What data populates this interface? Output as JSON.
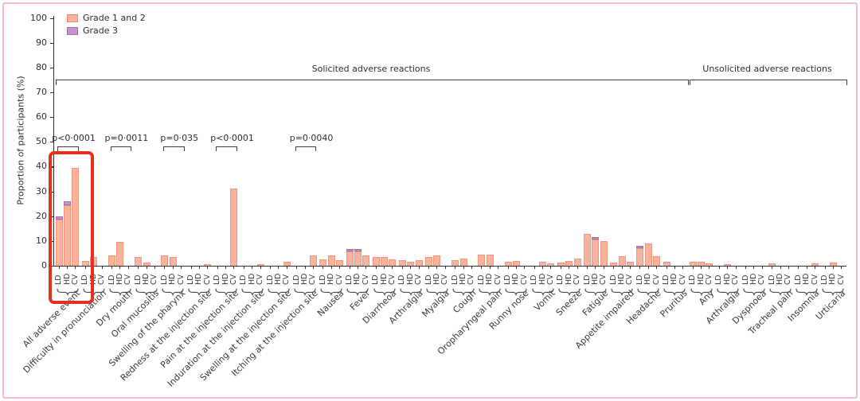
{
  "figure": {
    "y_axis": {
      "title": "Proportion of participants (%)",
      "min": 0,
      "max": 100,
      "step": 10
    },
    "legend": [
      {
        "label": "Grade 1 and 2",
        "fill": "#f8b29d",
        "border": "#ec8a62"
      },
      {
        "label": "Grade 3",
        "fill": "#c893c8",
        "border": "#9c6eb0"
      }
    ],
    "doses": [
      "LD",
      "HD",
      "CV"
    ],
    "sections": [
      {
        "label": "Solicited adverse reactions",
        "from": 0,
        "to": 23
      },
      {
        "label": "Unsolicited adverse reactions",
        "from": 24,
        "to": 29
      }
    ],
    "p_values": [
      {
        "label": "p<0·0001",
        "group": 0
      },
      {
        "label": "p=0·0011",
        "group": 2
      },
      {
        "label": "p=0·035",
        "group": 4
      },
      {
        "label": "p<0·0001",
        "group": 6
      },
      {
        "label": "p=0·0040",
        "group": 9
      }
    ],
    "highlight": {
      "group": 0,
      "color": "#e43020",
      "note": "red annotation box around All adverse event group"
    }
  },
  "chart_data": {
    "type": "bar",
    "stacked_series": [
      "Grade 1 and 2",
      "Grade 3"
    ],
    "bar_colors": {
      "grade12": "#f8b29d",
      "grade12_border": "#f0977b",
      "grade3": "#c893c8",
      "grade3_border": "#9c6eb0"
    },
    "ylim": [
      0,
      100
    ],
    "doses_per_category": [
      "LD",
      "HD",
      "CV"
    ],
    "categories": [
      "All adverse event",
      "Difficulty in pronunciation",
      "Dry mouth",
      "Oral mucositis",
      "Swelling of the pharynx",
      "Redness at the injection site",
      "Pain at the injection site",
      "Induration at the injection site",
      "Swelling at the injection site",
      "Itching at the injection site",
      "Nausea",
      "Fever",
      "Diarrheoa",
      "Arthralgia",
      "Myalgia",
      "Cough",
      "Oropharyngeal pain",
      "Runny nose",
      "Vomit",
      "Sneeze",
      "Fatigue",
      "Appetite impaired",
      "Headache",
      "Pruritus",
      "Any",
      "Arthralgia",
      "Dyspnoea",
      "Tracheal pain",
      "Insomnia",
      "Urticaria"
    ],
    "groups": [
      {
        "label": "All adverse event",
        "section": "solicited",
        "bars": [
          [
            18.5,
            1.5
          ],
          [
            24.5,
            1.5
          ],
          [
            39.5,
            0
          ]
        ]
      },
      {
        "label": "Difficulty in pronunciation",
        "section": "solicited",
        "bars": [
          [
            2,
            0
          ],
          [
            3.6,
            0
          ],
          [
            0,
            0
          ]
        ]
      },
      {
        "label": "Dry mouth",
        "section": "solicited",
        "bars": [
          [
            4.3,
            0
          ],
          [
            9.5,
            0
          ],
          [
            0,
            0
          ]
        ]
      },
      {
        "label": "Oral mucositis",
        "section": "solicited",
        "bars": [
          [
            3.6,
            0
          ],
          [
            1.4,
            0
          ],
          [
            0,
            0
          ]
        ]
      },
      {
        "label": "Swelling of the pharynx",
        "section": "solicited",
        "bars": [
          [
            4.3,
            0
          ],
          [
            3.6,
            0
          ],
          [
            0,
            0
          ]
        ]
      },
      {
        "label": "Redness at the injection site",
        "section": "solicited",
        "bars": [
          [
            0,
            0
          ],
          [
            0,
            0
          ],
          [
            0.7,
            0
          ]
        ]
      },
      {
        "label": "Pain at the injection site",
        "section": "solicited",
        "bars": [
          [
            0,
            0
          ],
          [
            0,
            0
          ],
          [
            31,
            0
          ]
        ]
      },
      {
        "label": "Induration at the injection site",
        "section": "solicited",
        "bars": [
          [
            0,
            0
          ],
          [
            0,
            0
          ],
          [
            0.7,
            0
          ]
        ]
      },
      {
        "label": "Swelling at the injection site",
        "section": "solicited",
        "bars": [
          [
            0,
            0
          ],
          [
            0,
            0
          ],
          [
            1.5,
            0
          ]
        ]
      },
      {
        "label": "Itching at the injection site",
        "section": "solicited",
        "bars": [
          [
            0,
            0
          ],
          [
            0,
            0
          ],
          [
            4.2,
            0
          ]
        ]
      },
      {
        "label": "Nausea",
        "section": "solicited",
        "bars": [
          [
            2.7,
            0
          ],
          [
            4.3,
            0
          ],
          [
            2.4,
            0
          ]
        ]
      },
      {
        "label": "Fever",
        "section": "solicited",
        "bars": [
          [
            5.7,
            0.9
          ],
          [
            5.7,
            0.9
          ],
          [
            4.3,
            0
          ]
        ]
      },
      {
        "label": "Diarrheoa",
        "section": "solicited",
        "bars": [
          [
            3.6,
            0
          ],
          [
            3.6,
            0
          ],
          [
            2.7,
            0
          ]
        ]
      },
      {
        "label": "Arthralgia",
        "section": "solicited",
        "bars": [
          [
            2.2,
            0
          ],
          [
            1.5,
            0
          ],
          [
            2.4,
            0
          ]
        ]
      },
      {
        "label": "Myalgia",
        "section": "solicited",
        "bars": [
          [
            3.4,
            0
          ],
          [
            4.3,
            0
          ],
          [
            0,
            0
          ]
        ]
      },
      {
        "label": "Cough",
        "section": "solicited",
        "bars": [
          [
            2.3,
            0
          ],
          [
            3,
            0
          ],
          [
            0,
            0
          ]
        ]
      },
      {
        "label": "Oropharyngeal pain",
        "section": "solicited",
        "bars": [
          [
            4.5,
            0
          ],
          [
            4.5,
            0
          ],
          [
            0,
            0
          ]
        ]
      },
      {
        "label": "Runny nose",
        "section": "solicited",
        "bars": [
          [
            1.5,
            0
          ],
          [
            2,
            0
          ],
          [
            0,
            0
          ]
        ]
      },
      {
        "label": "Vomit",
        "section": "solicited",
        "bars": [
          [
            0,
            0
          ],
          [
            1.5,
            0
          ],
          [
            1.1,
            0
          ]
        ]
      },
      {
        "label": "Sneeze",
        "section": "solicited",
        "bars": [
          [
            1.2,
            0
          ],
          [
            2,
            0
          ],
          [
            2.8,
            0
          ]
        ]
      },
      {
        "label": "Fatigue",
        "section": "solicited",
        "bars": [
          [
            12.8,
            0
          ],
          [
            10.6,
            0.8
          ],
          [
            10,
            0
          ]
        ]
      },
      {
        "label": "Appetite impaired",
        "section": "solicited",
        "bars": [
          [
            1.2,
            0
          ],
          [
            4,
            0
          ],
          [
            1.6,
            0
          ]
        ]
      },
      {
        "label": "Headache",
        "section": "solicited",
        "bars": [
          [
            7.2,
            0.9
          ],
          [
            9,
            0
          ],
          [
            3.8,
            0
          ]
        ]
      },
      {
        "label": "Pruritus",
        "section": "solicited",
        "bars": [
          [
            1.7,
            0
          ],
          [
            0,
            0
          ],
          [
            0,
            0
          ]
        ]
      },
      {
        "label": "Any",
        "section": "unsolicited",
        "bars": [
          [
            1.7,
            0
          ],
          [
            1.7,
            0
          ],
          [
            1.1,
            0
          ]
        ]
      },
      {
        "label": "Arthralgia",
        "section": "unsolicited",
        "bars": [
          [
            0,
            0
          ],
          [
            0.7,
            0
          ],
          [
            0,
            0
          ]
        ]
      },
      {
        "label": "Dyspnoea",
        "section": "unsolicited",
        "bars": [
          [
            0,
            0
          ],
          [
            0,
            0
          ],
          [
            0,
            0
          ]
        ]
      },
      {
        "label": "Tracheal pain",
        "section": "unsolicited",
        "bars": [
          [
            1.1,
            0
          ],
          [
            0,
            0
          ],
          [
            0,
            0
          ]
        ]
      },
      {
        "label": "Insomnia",
        "section": "unsolicited",
        "bars": [
          [
            0,
            0
          ],
          [
            0,
            0
          ],
          [
            1.1,
            0
          ]
        ]
      },
      {
        "label": "Urticaria",
        "section": "unsolicited",
        "bars": [
          [
            0,
            0
          ],
          [
            1.3,
            0
          ],
          [
            0,
            0
          ]
        ]
      }
    ]
  }
}
